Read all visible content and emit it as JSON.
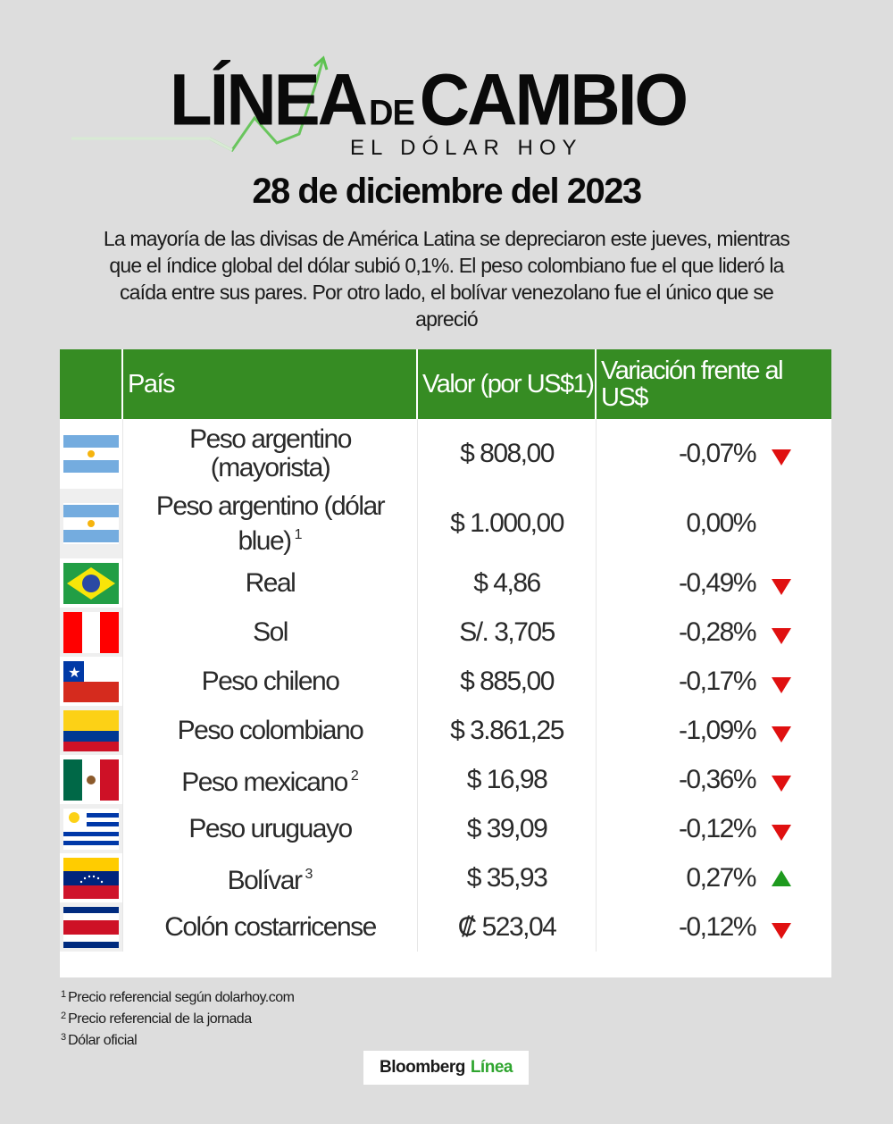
{
  "header": {
    "logo_word1": "LÍNEA",
    "logo_de": "DE",
    "logo_word2": "CAMBIO",
    "logo_subtitle": "EL DÓLAR HOY",
    "date": "28 de diciembre del 2023",
    "intro": "La mayoría de las divisas de América Latina se depreciaron este jueves, mientras que el índice global del dólar subió 0,1%. El peso colombiano fue el que lideró la caída entre sus pares. Por otro lado, el bolívar venezolano fue el único que se apreció"
  },
  "colors": {
    "header_green": "#368c23",
    "down_red": "#e01010",
    "up_green": "#1e9a1e",
    "background": "#dddddd"
  },
  "table": {
    "columns": [
      "",
      "País",
      "Valor (por US$1)",
      "Variación frente al US$"
    ],
    "rows": [
      {
        "flag": "argentina-flag",
        "currency": "Peso argentino (mayorista)",
        "note": "",
        "value": "$ 808,00",
        "change": "-0,07%",
        "trend": "down"
      },
      {
        "flag": "argentina-flag",
        "currency": "Peso argentino (dólar blue)",
        "note": "1",
        "value": "$ 1.000,00",
        "change": "0,00%",
        "trend": "none"
      },
      {
        "flag": "brazil-flag",
        "currency": "Real",
        "note": "",
        "value": "$ 4,86",
        "change": "-0,49%",
        "trend": "down"
      },
      {
        "flag": "peru-flag",
        "currency": "Sol",
        "note": "",
        "value": "S/. 3,705",
        "change": "-0,28%",
        "trend": "down"
      },
      {
        "flag": "chile-flag",
        "currency": "Peso chileno",
        "note": "",
        "value": "$ 885,00",
        "change": "-0,17%",
        "trend": "down"
      },
      {
        "flag": "colombia-flag",
        "currency": "Peso colombiano",
        "note": "",
        "value": "$ 3.861,25",
        "change": "-1,09%",
        "trend": "down"
      },
      {
        "flag": "mexico-flag",
        "currency": "Peso mexicano",
        "note": "2",
        "value": "$ 16,98",
        "change": "-0,36%",
        "trend": "down"
      },
      {
        "flag": "uruguay-flag",
        "currency": "Peso uruguayo",
        "note": "",
        "value": "$ 39,09",
        "change": "-0,12%",
        "trend": "down"
      },
      {
        "flag": "venezuela-flag",
        "currency": "Bolívar",
        "note": "3",
        "value": "$ 35,93",
        "change": "0,27%",
        "trend": "up"
      },
      {
        "flag": "costa-rica-flag",
        "currency": "Colón costarricense",
        "note": "",
        "value": "₡ 523,04",
        "change": "-0,12%",
        "trend": "down"
      }
    ]
  },
  "footnotes": [
    {
      "mark": "1",
      "text": "Precio referencial según dolarhoy.com"
    },
    {
      "mark": "2",
      "text": "Precio referencial de la jornada"
    },
    {
      "mark": "3",
      "text": "Dólar oficial"
    }
  ],
  "brand": {
    "part1": "Bloomberg",
    "part2": "Línea"
  }
}
